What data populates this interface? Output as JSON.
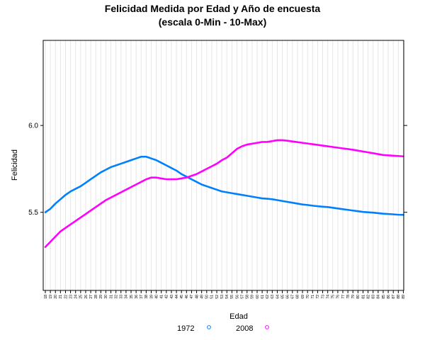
{
  "chart_data": {
    "type": "line",
    "title": "Felicidad Medida por Edad y Año de encuesta",
    "subtitle": "(escala 0-Min - 10-Max)",
    "xlabel": "Edad",
    "ylabel": "Felicidad",
    "x": [
      18,
      19,
      20,
      21,
      22,
      23,
      24,
      25,
      26,
      27,
      28,
      29,
      30,
      31,
      32,
      33,
      34,
      35,
      36,
      37,
      38,
      39,
      40,
      41,
      42,
      43,
      44,
      45,
      46,
      47,
      48,
      49,
      50,
      51,
      52,
      53,
      54,
      55,
      56,
      57,
      58,
      59,
      60,
      61,
      62,
      63,
      64,
      65,
      66,
      67,
      68,
      69,
      70,
      71,
      72,
      73,
      74,
      75,
      76,
      77,
      78,
      79,
      80,
      81,
      82,
      83,
      84,
      85,
      86,
      87,
      88,
      89
    ],
    "x_tick_labels": [
      "18",
      "19",
      "20",
      "21",
      "22",
      "23",
      "24",
      "25",
      "26",
      "27",
      "28",
      "29",
      "30",
      "31",
      "32",
      "33",
      "34",
      "35",
      "36",
      "37",
      "38",
      "39",
      "40",
      "41",
      "42",
      "43",
      "44",
      "45",
      "46",
      "47",
      "48",
      "49",
      "50",
      "51",
      "52",
      "53",
      "54",
      "55",
      "56",
      "57",
      "58",
      "59",
      "60",
      "61",
      "62",
      "63",
      "64",
      "65",
      "66",
      "67",
      "68",
      "69",
      "70",
      "71",
      "72",
      "73",
      "74",
      "75",
      "76",
      "77",
      "78",
      "79",
      "80",
      "81",
      "82",
      "83",
      "84",
      "85",
      "86",
      "87",
      "88",
      "89"
    ],
    "y_ticks": [
      5.5,
      6.0
    ],
    "y_tick_labels": [
      "5.5",
      "6.0"
    ],
    "ylim": [
      5.05,
      6.49
    ],
    "grid": true,
    "legend_position": "bottom",
    "series": [
      {
        "name": "1972",
        "color": "#0080ff",
        "values": [
          5.5,
          5.52,
          5.55,
          5.575,
          5.6,
          5.62,
          5.635,
          5.65,
          5.67,
          5.69,
          5.71,
          5.73,
          5.745,
          5.76,
          5.77,
          5.78,
          5.79,
          5.8,
          5.81,
          5.82,
          5.82,
          5.81,
          5.8,
          5.785,
          5.77,
          5.755,
          5.74,
          5.72,
          5.705,
          5.69,
          5.675,
          5.66,
          5.65,
          5.64,
          5.63,
          5.62,
          5.615,
          5.61,
          5.605,
          5.6,
          5.595,
          5.59,
          5.585,
          5.58,
          5.578,
          5.575,
          5.57,
          5.565,
          5.56,
          5.555,
          5.55,
          5.545,
          5.542,
          5.538,
          5.535,
          5.532,
          5.53,
          5.526,
          5.522,
          5.518,
          5.514,
          5.51,
          5.506,
          5.502,
          5.5,
          5.498,
          5.495,
          5.492,
          5.49,
          5.488,
          5.486,
          5.485
        ]
      },
      {
        "name": "2008",
        "color": "#ff00ff",
        "values": [
          5.3,
          5.33,
          5.36,
          5.39,
          5.41,
          5.43,
          5.45,
          5.47,
          5.49,
          5.51,
          5.53,
          5.55,
          5.57,
          5.585,
          5.6,
          5.615,
          5.63,
          5.645,
          5.66,
          5.675,
          5.69,
          5.7,
          5.7,
          5.695,
          5.69,
          5.69,
          5.69,
          5.695,
          5.7,
          5.71,
          5.72,
          5.735,
          5.75,
          5.765,
          5.78,
          5.8,
          5.815,
          5.84,
          5.865,
          5.88,
          5.89,
          5.895,
          5.9,
          5.905,
          5.905,
          5.91,
          5.915,
          5.915,
          5.912,
          5.908,
          5.904,
          5.9,
          5.896,
          5.892,
          5.888,
          5.884,
          5.88,
          5.876,
          5.872,
          5.868,
          5.864,
          5.86,
          5.855,
          5.85,
          5.845,
          5.84,
          5.835,
          5.83,
          5.828,
          5.826,
          5.824,
          5.822
        ]
      }
    ]
  }
}
